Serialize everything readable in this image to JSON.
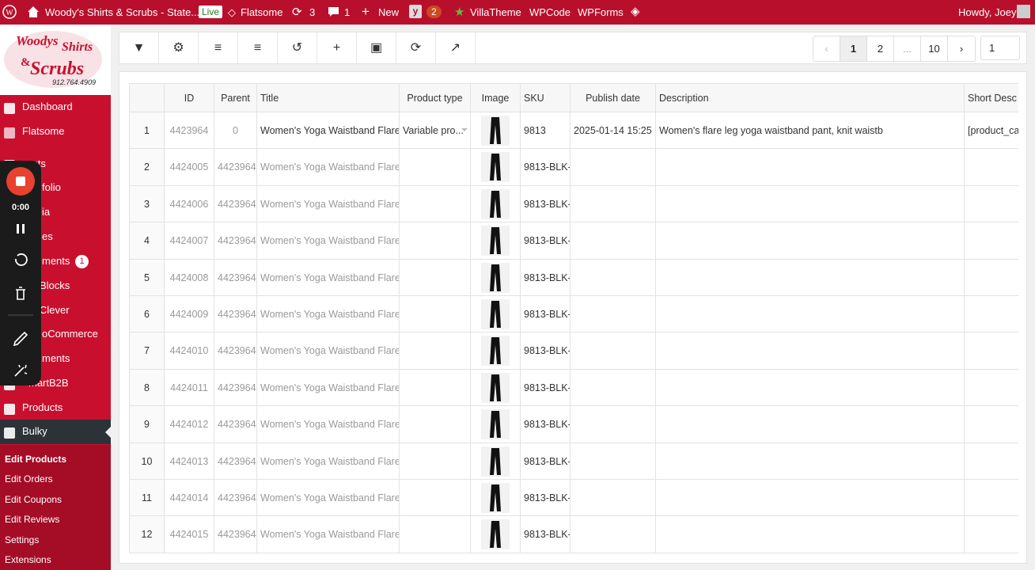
{
  "admin_bar": {
    "site_name": "Woody's Shirts & Scrubs - State...",
    "live_badge": "Live",
    "theme": "Flatsome",
    "updates": "3",
    "comments": "1",
    "new": "New",
    "yoast_count": "2",
    "villatheme": "VillaTheme",
    "wpcode": "WPCode",
    "wpforms": "WPForms",
    "greeting": "Howdy, Joey"
  },
  "logo": {
    "lines": [
      "Woodys",
      "Shirts",
      "&",
      "Scrubs"
    ],
    "phone": "912.764.4909"
  },
  "sidebar": {
    "menu": [
      {
        "label": "Dashboard"
      },
      {
        "label": "Flatsome"
      },
      {
        "label": "osts"
      },
      {
        "label": "folio"
      },
      {
        "label": "ia"
      },
      {
        "label": "es"
      },
      {
        "label": "ments",
        "badge": "1"
      },
      {
        "label": "Blocks"
      },
      {
        "label": "Clever"
      },
      {
        "label": "oCommerce"
      },
      {
        "label": "ments"
      },
      {
        "label": "martB2B"
      },
      {
        "label": "Products"
      },
      {
        "label": "Bulky"
      }
    ],
    "submenu": [
      "Edit Products",
      "Edit Orders",
      "Edit Coupons",
      "Edit Reviews",
      "Settings",
      "Extensions"
    ]
  },
  "recorder": {
    "time": "0:00"
  },
  "pagination": {
    "pages": [
      "1",
      "2",
      "...",
      "10"
    ],
    "page_input": "1"
  },
  "table": {
    "headers": [
      "ID",
      "Parent",
      "Title",
      "Product type",
      "Image",
      "SKU",
      "Publish date",
      "Description",
      "Short Desc"
    ],
    "rows": [
      [
        "1",
        "4423964",
        "0",
        "Women's Yoga Waistband Flare",
        "Variable pro...",
        "9813",
        "2025-01-14 15:25",
        "Women's flare leg yoga waistband pant, knit waistb",
        "[product_ca"
      ],
      [
        "2",
        "4424005",
        "4423964",
        "Women's Yoga Waistband Flare",
        null,
        "9813-BLK-",
        null,
        null,
        null
      ],
      [
        "3",
        "4424006",
        "4423964",
        "Women's Yoga Waistband Flare",
        null,
        "9813-BLK-",
        null,
        null,
        null
      ],
      [
        "4",
        "4424007",
        "4423964",
        "Women's Yoga Waistband Flare",
        null,
        "9813-BLK-",
        null,
        null,
        null
      ],
      [
        "5",
        "4424008",
        "4423964",
        "Women's Yoga Waistband Flare",
        null,
        "9813-BLK-",
        null,
        null,
        null
      ],
      [
        "6",
        "4424009",
        "4423964",
        "Women's Yoga Waistband Flare",
        null,
        "9813-BLK-",
        null,
        null,
        null
      ],
      [
        "7",
        "4424010",
        "4423964",
        "Women's Yoga Waistband Flare",
        null,
        "9813-BLK-",
        null,
        null,
        null
      ],
      [
        "8",
        "4424011",
        "4423964",
        "Women's Yoga Waistband Flare",
        null,
        "9813-BLK-",
        null,
        null,
        null
      ],
      [
        "9",
        "4424012",
        "4423964",
        "Women's Yoga Waistband Flare",
        null,
        "9813-BLK-",
        null,
        null,
        null
      ],
      [
        "10",
        "4424013",
        "4423964",
        "Women's Yoga Waistband Flare",
        null,
        "9813-BLK-",
        null,
        null,
        null
      ],
      [
        "11",
        "4424014",
        "4423964",
        "Women's Yoga Waistband Flare",
        null,
        "9813-BLK-",
        null,
        null,
        null
      ],
      [
        "12",
        "4424015",
        "4423964",
        "Women's Yoga Waistband Flare",
        null,
        "9813-BLK-",
        null,
        null,
        null
      ]
    ]
  }
}
